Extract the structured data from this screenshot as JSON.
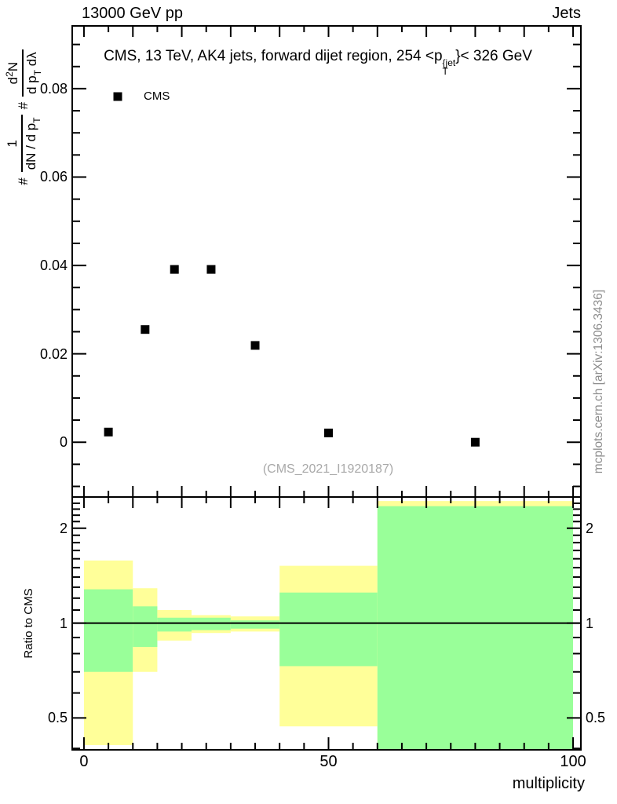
{
  "header": {
    "left_title": "13000 GeV pp",
    "right_title": "Jets"
  },
  "plot_title": {
    "prefix": "CMS, 13 TeV, AK4 jets, forward dijet region, 254 <p",
    "sup": "{jet",
    "sub": "T",
    "suffix": "}< 326 GeV"
  },
  "legend": {
    "entries": [
      {
        "label": "CMS",
        "marker": "black-filled-square"
      }
    ]
  },
  "watermark": "(CMS_2021_I1920187)",
  "credit": "mcplots.cern.ch [arXiv:1306.3436]",
  "colors": {
    "band_total_uncertainty": "#ffff99",
    "band_stat_uncertainty": "#99ff99",
    "data_marker": "#000000",
    "frame": "#000000",
    "watermark_text": "#a9a9a9",
    "credit_text": "#8e8e8e"
  },
  "ylabel_main": {
    "hash1": "#",
    "frac1_num": "1",
    "frac1_den_pre": "dN / d p",
    "frac1_den_sub": "T",
    "hash2": "#",
    "frac2_num_pre": "d",
    "frac2_num_sup": "2",
    "frac2_num_post": "N",
    "frac2_den_pre": "d p",
    "frac2_den_sub": "T",
    "frac2_den_post": " dλ"
  },
  "chart_data": [
    {
      "type": "scatter",
      "panel": "main",
      "series": [
        {
          "name": "CMS",
          "marker": "filled-square",
          "color": "#000000",
          "x": [
            5,
            12.5,
            18.5,
            26,
            35,
            50,
            80
          ],
          "y": [
            0.0023,
            0.0255,
            0.0391,
            0.0391,
            0.0219,
            0.0021,
            0.0
          ]
        }
      ],
      "xlim": [
        -2.4,
        101.6
      ],
      "ylim": [
        -0.0124,
        0.0942
      ],
      "yticks": [
        0,
        0.02,
        0.04,
        0.06,
        0.08
      ],
      "ytick_labels": [
        "0",
        "0.02",
        "0.04",
        "0.06",
        "0.08"
      ],
      "y_minor_step": 0.005,
      "x_major_step": 10,
      "x_minor_step": 5,
      "grid": false,
      "legend_position": "top-left"
    },
    {
      "type": "band-ratio",
      "panel": "ratio",
      "ylabel": "Ratio to CMS",
      "xlabel": "multiplicity",
      "yscale": "log",
      "xlim": [
        -2.4,
        101.6
      ],
      "ylim": [
        0.396,
        2.513
      ],
      "yticks": [
        0.5,
        1,
        2
      ],
      "ytick_labels": [
        "0.5",
        "1",
        "2"
      ],
      "yticks_minor": [
        0.4,
        0.6,
        0.7,
        0.8,
        0.9,
        1.1,
        1.2,
        1.3,
        1.4,
        1.5,
        1.6,
        1.7,
        1.8,
        1.9,
        2.1,
        2.2,
        2.3,
        2.4
      ],
      "xticks": [
        0,
        50,
        100
      ],
      "xtick_labels": [
        "0",
        "50",
        "100"
      ],
      "x_minor_step": 5,
      "x_major_step": 10,
      "ref_line": 1.0,
      "bins": [
        {
          "xlo": 0,
          "xhi": 10,
          "total": [
            0.41,
            1.58
          ],
          "stat": [
            0.7,
            1.28
          ]
        },
        {
          "xlo": 10,
          "xhi": 15,
          "total": [
            0.7,
            1.29
          ],
          "stat": [
            0.84,
            1.13
          ]
        },
        {
          "xlo": 15,
          "xhi": 22,
          "total": [
            0.88,
            1.1
          ],
          "stat": [
            0.94,
            1.04
          ]
        },
        {
          "xlo": 22,
          "xhi": 30,
          "total": [
            0.93,
            1.06
          ],
          "stat": [
            0.95,
            1.04
          ]
        },
        {
          "xlo": 30,
          "xhi": 40,
          "total": [
            0.94,
            1.05
          ],
          "stat": [
            0.96,
            1.02
          ]
        },
        {
          "xlo": 40,
          "xhi": 60,
          "total": [
            0.47,
            1.52
          ],
          "stat": [
            0.73,
            1.25
          ]
        },
        {
          "xlo": 60,
          "xhi": 100,
          "total": [
            0.38,
            2.44
          ],
          "stat": [
            0.38,
            2.35
          ]
        }
      ]
    }
  ]
}
